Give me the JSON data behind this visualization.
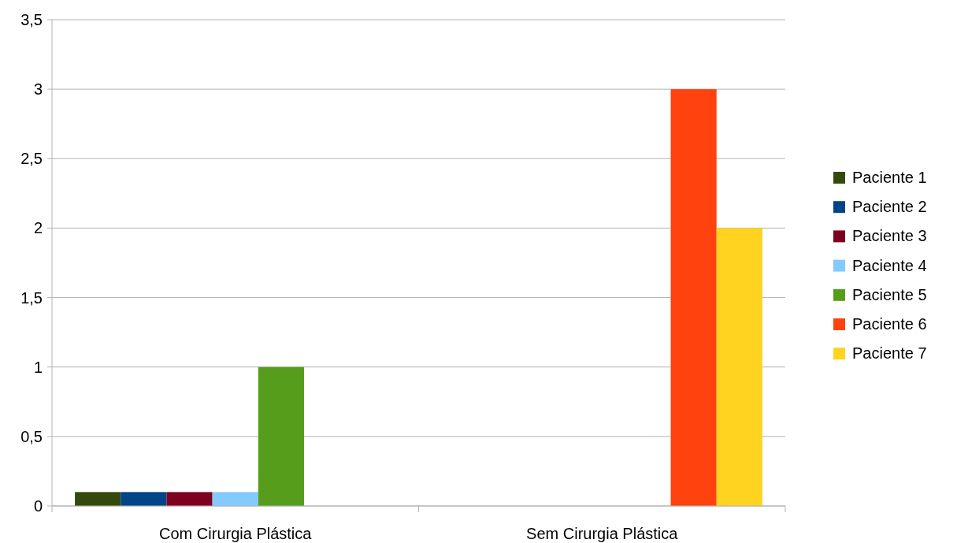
{
  "chart_data": {
    "type": "bar",
    "categories": [
      "Com Cirurgia Plástica",
      "Sem Cirurgia Plástica"
    ],
    "series": [
      {
        "name": "Paciente 1",
        "color": "#344a0c",
        "values": [
          0.1,
          0
        ]
      },
      {
        "name": "Paciente 2",
        "color": "#004586",
        "values": [
          0.1,
          0
        ]
      },
      {
        "name": "Paciente 3",
        "color": "#7e0021",
        "values": [
          0.1,
          0
        ]
      },
      {
        "name": "Paciente 4",
        "color": "#83caff",
        "values": [
          0.1,
          0
        ]
      },
      {
        "name": "Paciente 5",
        "color": "#579d1c",
        "values": [
          1,
          0
        ]
      },
      {
        "name": "Paciente 6",
        "color": "#ff420e",
        "values": [
          0,
          3
        ]
      },
      {
        "name": "Paciente 7",
        "color": "#ffd320",
        "values": [
          0,
          2
        ]
      }
    ],
    "ylim": [
      0,
      3.5
    ],
    "yticks": [
      {
        "value": 0,
        "label": "0"
      },
      {
        "value": 0.5,
        "label": "0,5"
      },
      {
        "value": 1,
        "label": "1"
      },
      {
        "value": 1.5,
        "label": "1,5"
      },
      {
        "value": 2,
        "label": "2"
      },
      {
        "value": 2.5,
        "label": "2,5"
      },
      {
        "value": 3,
        "label": "3"
      },
      {
        "value": 3.5,
        "label": "3,5"
      }
    ],
    "grid": "y",
    "legend": "right"
  }
}
